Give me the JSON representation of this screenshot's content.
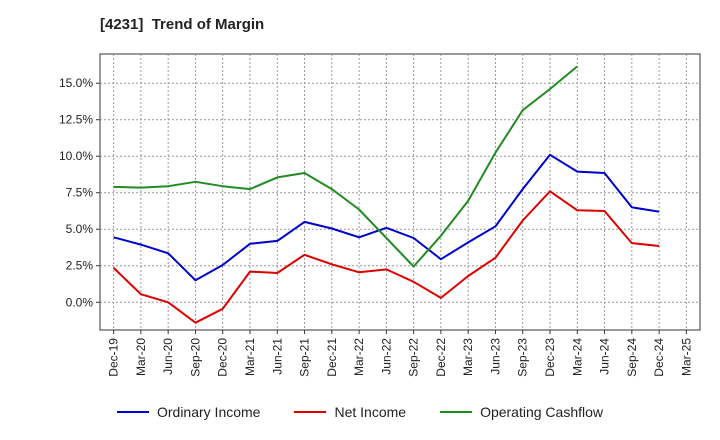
{
  "chart_data": {
    "type": "line",
    "title": "[4231]  Trend of Margin",
    "xlabel": "",
    "ylabel": "",
    "ylim": [
      -1.9,
      17.0
    ],
    "grid": true,
    "legend_position": "bottom",
    "x": [
      "Dec-19",
      "Mar-20",
      "Jun-20",
      "Sep-20",
      "Dec-20",
      "Mar-21",
      "Jun-21",
      "Sep-21",
      "Dec-21",
      "Mar-22",
      "Jun-22",
      "Sep-22",
      "Dec-22",
      "Mar-23",
      "Jun-23",
      "Sep-23",
      "Dec-23",
      "Mar-24",
      "Jun-24",
      "Sep-24",
      "Dec-24",
      "Mar-25"
    ],
    "y_ticks": [
      0.0,
      2.5,
      5.0,
      7.5,
      10.0,
      12.5,
      15.0
    ],
    "y_tick_labels": [
      "0.0%",
      "2.5%",
      "5.0%",
      "7.5%",
      "10.0%",
      "12.5%",
      "15.0%"
    ],
    "series": [
      {
        "name": "Ordinary Income",
        "color": "#0000cc",
        "values": [
          4.45,
          3.95,
          3.35,
          1.5,
          2.55,
          4.0,
          4.2,
          5.5,
          5.05,
          4.45,
          5.1,
          4.4,
          2.95,
          4.1,
          5.2,
          7.75,
          10.1,
          8.95,
          8.85,
          6.5,
          6.2,
          null
        ]
      },
      {
        "name": "Net Income",
        "color": "#dd0000",
        "values": [
          2.35,
          0.55,
          0.0,
          -1.4,
          -0.45,
          2.1,
          2.0,
          3.25,
          2.6,
          2.05,
          2.25,
          1.4,
          0.3,
          1.8,
          3.05,
          5.6,
          7.6,
          6.3,
          6.25,
          4.05,
          3.85,
          null
        ]
      },
      {
        "name": "Operating Cashflow",
        "color": "#228b22",
        "values": [
          7.9,
          7.85,
          7.95,
          8.25,
          7.95,
          7.75,
          8.55,
          8.85,
          7.75,
          6.35,
          4.4,
          2.45,
          4.55,
          6.95,
          10.25,
          13.15,
          14.6,
          16.15,
          null,
          null,
          null,
          null
        ]
      }
    ]
  }
}
